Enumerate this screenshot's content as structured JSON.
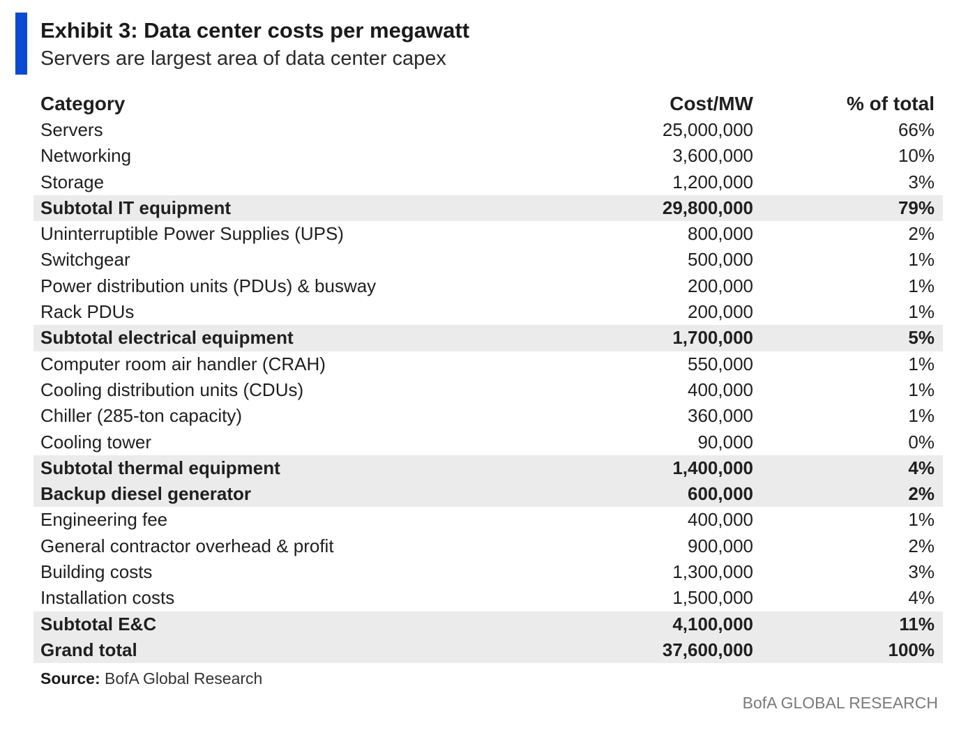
{
  "header": {
    "title": "Exhibit 3: Data center costs per megawatt",
    "subtitle": "Servers are largest area of data center capex",
    "accent_color": "#0a4bd1"
  },
  "table": {
    "columns": [
      "Category",
      "Cost/MW",
      "% of total"
    ],
    "rows": [
      {
        "category": "Servers",
        "cost": "25,000,000",
        "pct": "66%",
        "subtotal": false
      },
      {
        "category": "Networking",
        "cost": "3,600,000",
        "pct": "10%",
        "subtotal": false
      },
      {
        "category": "Storage",
        "cost": "1,200,000",
        "pct": "3%",
        "subtotal": false
      },
      {
        "category": "Subtotal IT equipment",
        "cost": "29,800,000",
        "pct": "79%",
        "subtotal": true
      },
      {
        "category": "Uninterruptible Power Supplies (UPS)",
        "cost": "800,000",
        "pct": "2%",
        "subtotal": false
      },
      {
        "category": "Switchgear",
        "cost": "500,000",
        "pct": "1%",
        "subtotal": false
      },
      {
        "category": "Power distribution units (PDUs) & busway",
        "cost": "200,000",
        "pct": "1%",
        "subtotal": false
      },
      {
        "category": "Rack PDUs",
        "cost": "200,000",
        "pct": "1%",
        "subtotal": false
      },
      {
        "category": "Subtotal electrical equipment",
        "cost": "1,700,000",
        "pct": "5%",
        "subtotal": true
      },
      {
        "category": "Computer room air handler (CRAH)",
        "cost": "550,000",
        "pct": "1%",
        "subtotal": false
      },
      {
        "category": "Cooling distribution units (CDUs)",
        "cost": "400,000",
        "pct": "1%",
        "subtotal": false
      },
      {
        "category": "Chiller (285-ton capacity)",
        "cost": "360,000",
        "pct": "1%",
        "subtotal": false
      },
      {
        "category": "Cooling tower",
        "cost": "90,000",
        "pct": "0%",
        "subtotal": false
      },
      {
        "category": "Subtotal thermal equipment",
        "cost": "1,400,000",
        "pct": "4%",
        "subtotal": true
      },
      {
        "category": "Backup diesel generator",
        "cost": "600,000",
        "pct": "2%",
        "subtotal": true
      },
      {
        "category": "Engineering fee",
        "cost": "400,000",
        "pct": "1%",
        "subtotal": false
      },
      {
        "category": "General contractor overhead & profit",
        "cost": "900,000",
        "pct": "2%",
        "subtotal": false
      },
      {
        "category": "Building costs",
        "cost": "1,300,000",
        "pct": "3%",
        "subtotal": false
      },
      {
        "category": "Installation costs",
        "cost": "1,500,000",
        "pct": "4%",
        "subtotal": false
      },
      {
        "category": "Subtotal E&C",
        "cost": "4,100,000",
        "pct": "11%",
        "subtotal": true
      },
      {
        "category": "Grand total",
        "cost": "37,600,000",
        "pct": "100%",
        "subtotal": true
      }
    ]
  },
  "footer": {
    "source_label": "Source:",
    "source_text": "BofA Global Research",
    "brand": "BofA GLOBAL RESEARCH"
  }
}
